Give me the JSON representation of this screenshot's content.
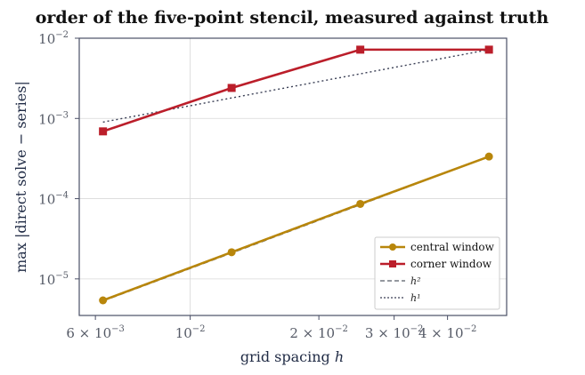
{
  "chart_data": {
    "type": "line",
    "title": "order of the five-point stencil, measured against truth",
    "xlabel": "grid spacing h",
    "ylabel": "max |direct solve − series|",
    "xscale": "log",
    "yscale": "log",
    "xlim": [
      0.0055,
      0.055
    ],
    "ylim": [
      3.5e-06,
      0.01
    ],
    "grid": true,
    "legend_position": "lower-right",
    "x": [
      0.00625,
      0.0125,
      0.025,
      0.05
    ],
    "series": [
      {
        "name": "central window",
        "values": [
          5.4e-06,
          2.15e-05,
          8.6e-05,
          0.000335
        ],
        "color": "#b8860b",
        "marker": "circle",
        "linestyle": "solid"
      },
      {
        "name": "corner window",
        "values": [
          0.00069,
          0.0024,
          0.0072,
          0.0072
        ],
        "color": "#bb1e2a",
        "marker": "square",
        "linestyle": "solid"
      },
      {
        "name": "h²",
        "values": [
          5.3e-06,
          2.1e-05,
          8.4e-05,
          0.000335
        ],
        "color": "#555a66",
        "marker": "none",
        "linestyle": "dashed"
      },
      {
        "name": "h¹",
        "values": [
          0.0009,
          0.0018,
          0.0036,
          0.0072
        ],
        "color": "#3a3f55",
        "marker": "none",
        "linestyle": "dotted"
      }
    ],
    "x_ticks": [
      {
        "value": 0.006,
        "base": "6 × 10",
        "exp": "−3"
      },
      {
        "value": 0.01,
        "base": "10",
        "exp": "−2"
      },
      {
        "value": 0.02,
        "base": "2 × 10",
        "exp": "−2"
      },
      {
        "value": 0.03,
        "base": "3 × 10",
        "exp": "−2"
      },
      {
        "value": 0.04,
        "base": "4 × 10",
        "exp": "−2"
      }
    ],
    "y_ticks": [
      {
        "value": 1e-05,
        "base": "10",
        "exp": "−5"
      },
      {
        "value": 0.0001,
        "base": "10",
        "exp": "−4"
      },
      {
        "value": 0.001,
        "base": "10",
        "exp": "−3"
      },
      {
        "value": 0.01,
        "base": "10",
        "exp": "−2"
      }
    ],
    "colors": {
      "frame": "#4a4f66",
      "grid": "#d8d8d8"
    }
  }
}
